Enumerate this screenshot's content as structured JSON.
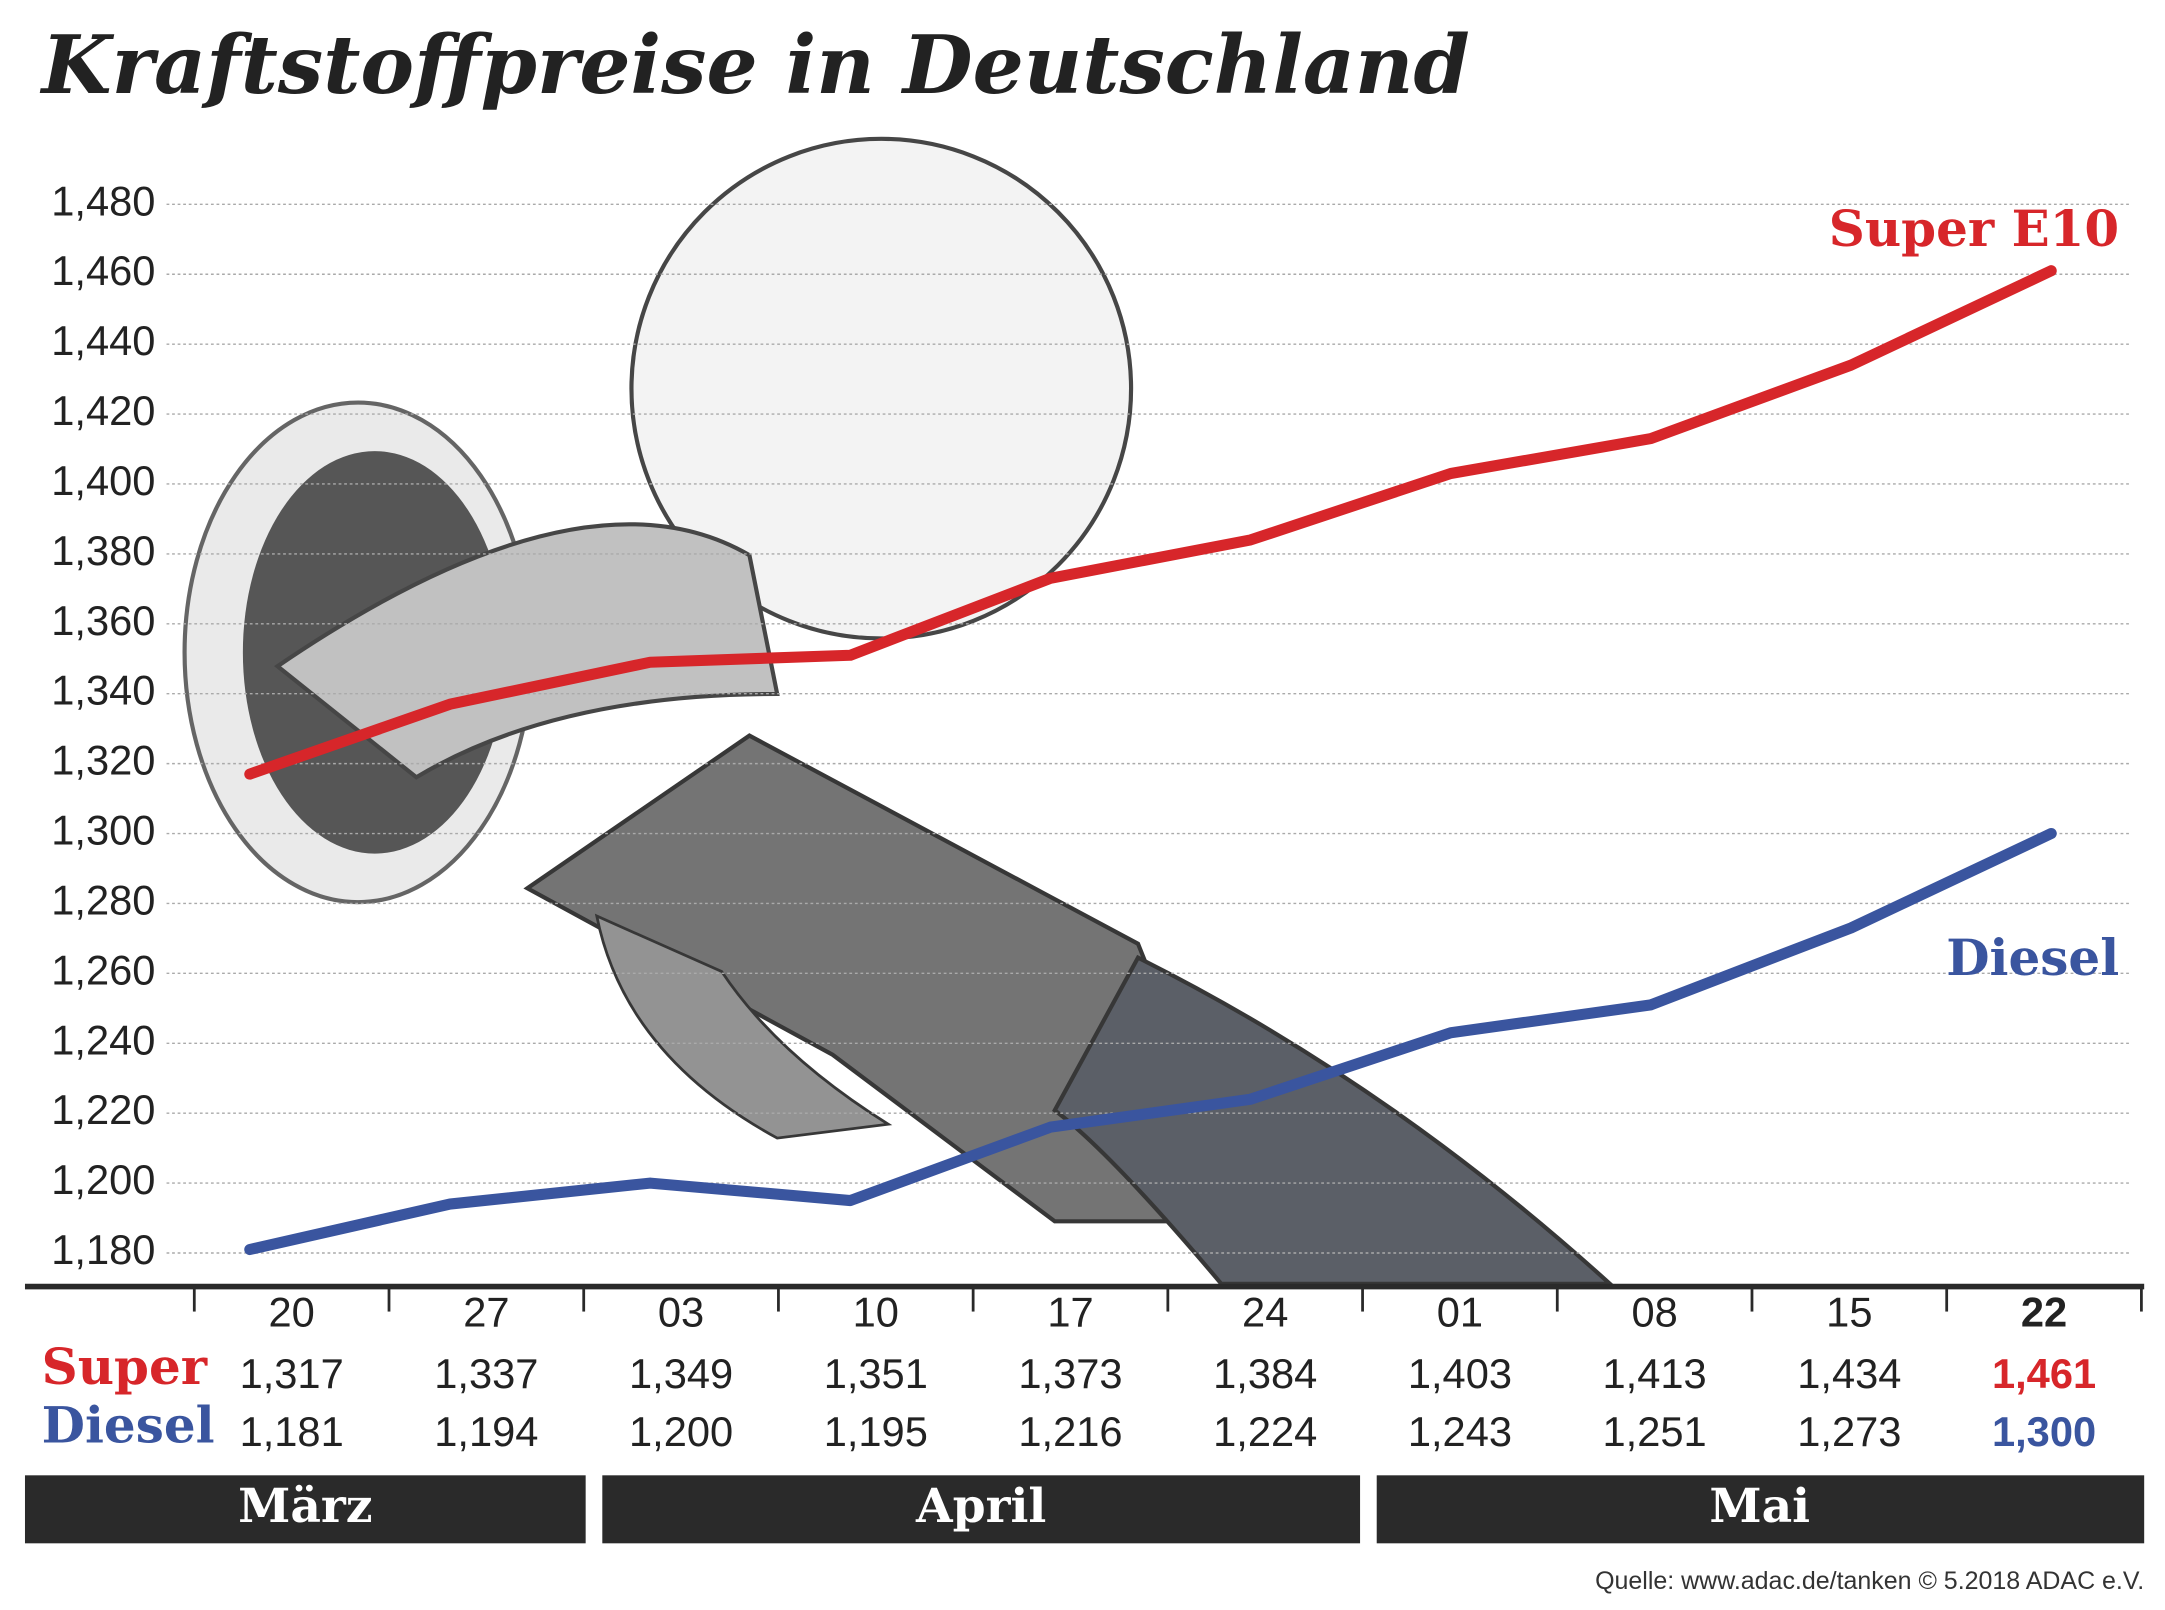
{
  "chart_data": {
    "type": "line",
    "title": "Kraftstoffpreise in Deutschland",
    "categories": [
      "20",
      "27",
      "03",
      "10",
      "17",
      "24",
      "01",
      "08",
      "15",
      "22"
    ],
    "months": [
      "März",
      "April",
      "Mai"
    ],
    "row_labels": [
      "Super",
      "Diesel"
    ],
    "series": [
      {
        "name": "Super E10",
        "color": "#d7262a",
        "values": [
          1.317,
          1.337,
          1.349,
          1.351,
          1.373,
          1.384,
          1.403,
          1.413,
          1.434,
          1.461
        ],
        "value_labels": [
          "1,317",
          "1,337",
          "1,349",
          "1,351",
          "1,373",
          "1,384",
          "1,403",
          "1,413",
          "1,434",
          "1,461"
        ]
      },
      {
        "name": "Diesel",
        "color": "#3a559f",
        "values": [
          1.181,
          1.194,
          1.2,
          1.195,
          1.216,
          1.224,
          1.243,
          1.251,
          1.273,
          1.3
        ],
        "value_labels": [
          "1,181",
          "1,194",
          "1,200",
          "1,195",
          "1,216",
          "1,224",
          "1,243",
          "1,251",
          "1,273",
          "1,300"
        ]
      }
    ],
    "ylim": [
      1.17,
      1.49
    ],
    "yticks": [
      {
        "value": 1.18,
        "label": "1,180"
      },
      {
        "value": 1.2,
        "label": "1,200"
      },
      {
        "value": 1.22,
        "label": "1,220"
      },
      {
        "value": 1.24,
        "label": "1,240"
      },
      {
        "value": 1.26,
        "label": "1,260"
      },
      {
        "value": 1.28,
        "label": "1,280"
      },
      {
        "value": 1.3,
        "label": "1,300"
      },
      {
        "value": 1.32,
        "label": "1,320"
      },
      {
        "value": 1.34,
        "label": "1,340"
      },
      {
        "value": 1.36,
        "label": "1,360"
      },
      {
        "value": 1.38,
        "label": "1,380"
      },
      {
        "value": 1.4,
        "label": "1,400"
      },
      {
        "value": 1.42,
        "label": "1,420"
      },
      {
        "value": 1.44,
        "label": "1,440"
      },
      {
        "value": 1.46,
        "label": "1,460"
      },
      {
        "value": 1.48,
        "label": "1,480"
      }
    ],
    "grid": true,
    "source": "Quelle: www.adac.de/tanken  © 5.2018  ADAC e.V."
  }
}
